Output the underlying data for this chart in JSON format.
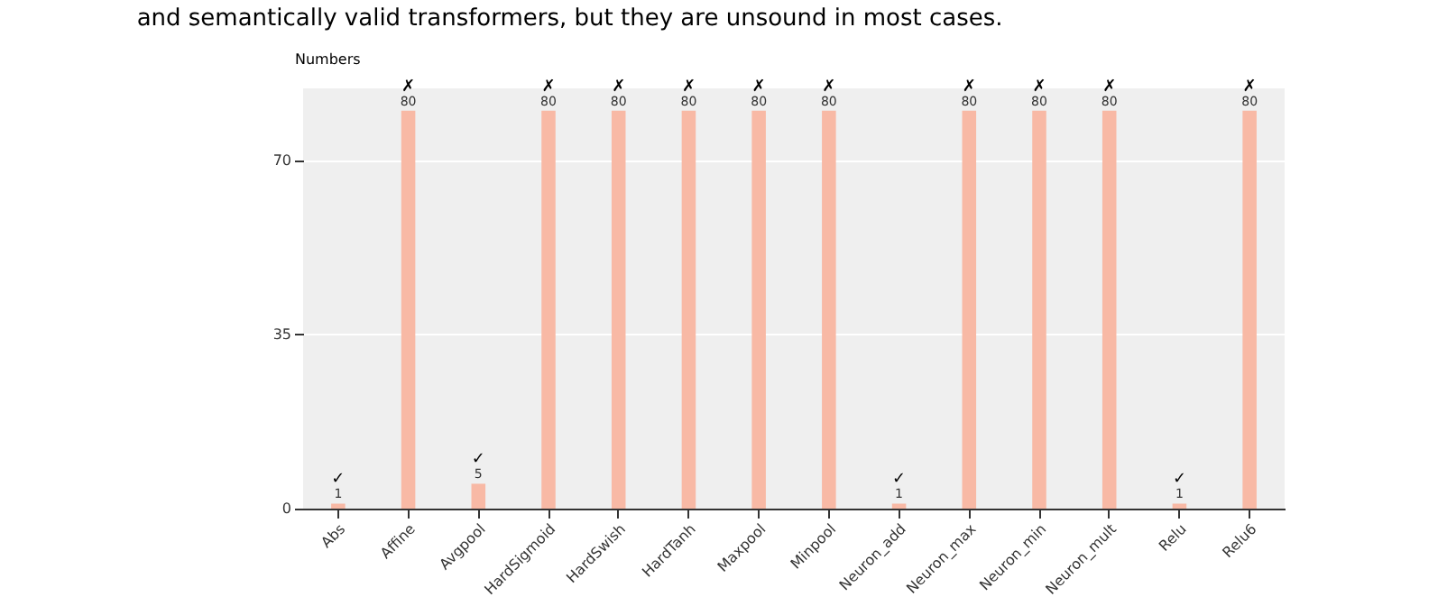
{
  "chart_data": {
    "type": "bar",
    "title": "and semantically valid transformers, but they are unsound in most cases.",
    "ylabel": "Numbers",
    "categories": [
      "Abs",
      "Affine",
      "Avgpool",
      "HardSigmoid",
      "HardSwish",
      "HardTanh",
      "Maxpool",
      "Minpool",
      "Neuron_add",
      "Neuron_max",
      "Neuron_min",
      "Neuron_mult",
      "Relu",
      "Relu6"
    ],
    "values": [
      1,
      80,
      5,
      80,
      80,
      80,
      80,
      80,
      1,
      80,
      80,
      80,
      1,
      80
    ],
    "color": "#f8b9a5",
    "ylim": [
      0,
      84.5
    ],
    "yticks": [
      0,
      35,
      70
    ],
    "grid": "y",
    "data_labels": true,
    "annotations": [
      {
        "text": "✓",
        "x": "Abs",
        "y": 1
      },
      {
        "text": "✗",
        "x": "Affine",
        "y": 80
      },
      {
        "text": "✓",
        "x": "Avgpool",
        "y": 5
      },
      {
        "text": "✗",
        "x": "HardSigmoid",
        "y": 80
      },
      {
        "text": "✗",
        "x": "HardSwish",
        "y": 80
      },
      {
        "text": "✗",
        "x": "HardTanh",
        "y": 80
      },
      {
        "text": "✗",
        "x": "Maxpool",
        "y": 80
      },
      {
        "text": "✗",
        "x": "Minpool",
        "y": 80
      },
      {
        "text": "✓",
        "x": "Neuron_add",
        "y": 1
      },
      {
        "text": "✗",
        "x": "Neuron_max",
        "y": 80
      },
      {
        "text": "✗",
        "x": "Neuron_min",
        "y": 80
      },
      {
        "text": "✗",
        "x": "Neuron_mult",
        "y": 80
      },
      {
        "text": "✓",
        "x": "Relu",
        "y": 1
      },
      {
        "text": "✗",
        "x": "Relu6",
        "y": 80
      }
    ]
  }
}
